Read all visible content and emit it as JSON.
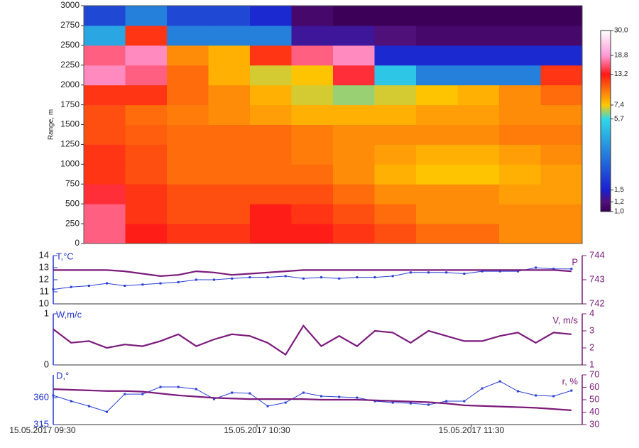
{
  "chart_data": [
    {
      "type": "heatmap",
      "ylabel": "Range, m",
      "ybins": [
        0,
        250,
        500,
        750,
        1000,
        1250,
        1500,
        1750,
        2000,
        2250,
        2500,
        2750,
        3000
      ],
      "ylim": [
        0,
        3000
      ],
      "yticks": [
        0,
        250,
        500,
        750,
        1000,
        1250,
        1500,
        1750,
        2000,
        2250,
        2500,
        2750,
        3000
      ],
      "values": [
        [
          16,
          13,
          12,
          12,
          13,
          13,
          12,
          11,
          10,
          10,
          9,
          9
        ],
        [
          16,
          12,
          11,
          11,
          13,
          12,
          11,
          10,
          9,
          9,
          9,
          9
        ],
        [
          14,
          12,
          11,
          11,
          11,
          11,
          10,
          9,
          9,
          9,
          8.5,
          8.5
        ],
        [
          12,
          11,
          10,
          10,
          10,
          10,
          9,
          8,
          7.5,
          7.5,
          8,
          8.5
        ],
        [
          12,
          11,
          10,
          10,
          10,
          9.5,
          9,
          8.5,
          8,
          8,
          8.5,
          9
        ],
        [
          11,
          10.5,
          10,
          10,
          10,
          9.5,
          9,
          9,
          9,
          9,
          9.5,
          9.5
        ],
        [
          11,
          10,
          9.5,
          9,
          8.5,
          8,
          8,
          8,
          8.5,
          8.5,
          9,
          9
        ],
        [
          12,
          12,
          10,
          9,
          8,
          7,
          6.5,
          7,
          7.5,
          8,
          9,
          10
        ],
        [
          18,
          16,
          10,
          8,
          7,
          7.5,
          14,
          5,
          3,
          3,
          3,
          12
        ],
        [
          16,
          18,
          9,
          8,
          12,
          16,
          18,
          1.6,
          1.6,
          1.6,
          1.6,
          1.6
        ],
        [
          4,
          12,
          3,
          3,
          3,
          1.3,
          1.3,
          1.2,
          1.1,
          1.1,
          1.1,
          1.1
        ],
        [
          2,
          3,
          2,
          2,
          1.6,
          1.1,
          1,
          1,
          1,
          1,
          1,
          1
        ]
      ],
      "clim": [
        1,
        30
      ],
      "clog": true,
      "cticks": [
        {
          "value": 30,
          "label": "30,0"
        },
        {
          "value": 18.8,
          "label": "18,8"
        },
        {
          "value": 13.2,
          "label": "13,2"
        },
        {
          "value": 7.4,
          "label": "7,4"
        },
        {
          "value": 5.7,
          "label": "5,7"
        },
        {
          "value": 1.5,
          "label": "1,5"
        },
        {
          "value": 1.2,
          "label": "1,2"
        },
        {
          "value": 1,
          "label": "1,0"
        }
      ],
      "ccolors": [
        "#ffffff",
        "#ff9ad8",
        "#ff1818",
        "#ffc800",
        "#30d8e8",
        "#1a20d0",
        "#50107a",
        "#3c0058"
      ]
    },
    {
      "type": "line",
      "ylabel": "T,°C",
      "y2label": "P",
      "x": [
        "2017-05-15 09:33",
        "2017-05-15 09:38",
        "2017-05-15 09:43",
        "2017-05-15 09:48",
        "2017-05-15 09:53",
        "2017-05-15 09:58",
        "2017-05-15 10:03",
        "2017-05-15 10:08",
        "2017-05-15 10:13",
        "2017-05-15 10:18",
        "2017-05-15 10:23",
        "2017-05-15 10:28",
        "2017-05-15 10:33",
        "2017-05-15 10:38",
        "2017-05-15 10:43",
        "2017-05-15 10:48",
        "2017-05-15 10:53",
        "2017-05-15 10:58",
        "2017-05-15 11:03",
        "2017-05-15 11:08",
        "2017-05-15 11:13",
        "2017-05-15 11:18",
        "2017-05-15 11:23",
        "2017-05-15 11:28",
        "2017-05-15 11:33",
        "2017-05-15 11:38",
        "2017-05-15 11:43",
        "2017-05-15 11:48",
        "2017-05-15 11:53",
        "2017-05-15 11:58"
      ],
      "xlim": [
        "2017-05-15 09:33",
        "2017-05-15 12:01"
      ],
      "ylim": [
        10,
        14
      ],
      "yticks": [
        10,
        11,
        12,
        13,
        14
      ],
      "y2lim": [
        742,
        744
      ],
      "y2ticks": [
        742,
        743,
        744
      ],
      "series": [
        {
          "color": "#2a3fd6",
          "marker": true,
          "values": [
            11.2,
            11.4,
            11.5,
            11.7,
            11.5,
            11.6,
            11.7,
            11.8,
            12.0,
            12.0,
            12.1,
            12.2,
            12.2,
            12.3,
            12.1,
            12.2,
            12.1,
            12.2,
            12.2,
            12.3,
            12.6,
            12.6,
            12.6,
            12.5,
            12.7,
            12.7,
            12.7,
            13.0,
            12.9,
            12.9
          ]
        },
        {
          "color": "#7b1a7b",
          "axis": "y2",
          "values": [
            743.4,
            743.4,
            743.4,
            743.4,
            743.35,
            743.25,
            743.15,
            743.2,
            743.35,
            743.3,
            743.2,
            743.25,
            743.3,
            743.35,
            743.4,
            743.4,
            743.4,
            743.4,
            743.4,
            743.4,
            743.4,
            743.4,
            743.4,
            743.4,
            743.4,
            743.4,
            743.4,
            743.4,
            743.4,
            743.35
          ]
        }
      ]
    },
    {
      "type": "line",
      "ylabel": "W,m/c",
      "y2label": "V, m/s",
      "x": [
        "2017-05-15 09:33",
        "2017-05-15 09:38",
        "2017-05-15 09:43",
        "2017-05-15 09:48",
        "2017-05-15 09:53",
        "2017-05-15 09:58",
        "2017-05-15 10:03",
        "2017-05-15 10:08",
        "2017-05-15 10:13",
        "2017-05-15 10:18",
        "2017-05-15 10:23",
        "2017-05-15 10:28",
        "2017-05-15 10:33",
        "2017-05-15 10:38",
        "2017-05-15 10:43",
        "2017-05-15 10:48",
        "2017-05-15 10:53",
        "2017-05-15 10:58",
        "2017-05-15 11:03",
        "2017-05-15 11:08",
        "2017-05-15 11:13",
        "2017-05-15 11:18",
        "2017-05-15 11:23",
        "2017-05-15 11:28",
        "2017-05-15 11:33",
        "2017-05-15 11:38",
        "2017-05-15 11:43",
        "2017-05-15 11:48",
        "2017-05-15 11:53",
        "2017-05-15 11:58"
      ],
      "xlim": [
        "2017-05-15 09:33",
        "2017-05-15 12:01"
      ],
      "ylim": [
        0,
        1
      ],
      "yticks": [
        0,
        1
      ],
      "y2lim": [
        1,
        4
      ],
      "y2ticks": [
        1,
        2,
        3,
        4
      ],
      "series": [
        {
          "color": "#7b1a7b",
          "axis": "y2",
          "values": [
            3.1,
            2.3,
            2.4,
            2.0,
            2.2,
            2.1,
            2.4,
            2.8,
            2.1,
            2.5,
            2.8,
            2.7,
            2.3,
            1.6,
            3.3,
            2.1,
            2.7,
            2.1,
            3.0,
            2.9,
            2.3,
            3.0,
            2.7,
            2.4,
            2.4,
            2.7,
            2.9,
            2.3,
            2.9,
            2.8
          ]
        }
      ]
    },
    {
      "type": "line",
      "ylabel": "D,°",
      "y2label": "r, %",
      "x": [
        "2017-05-15 09:33",
        "2017-05-15 09:38",
        "2017-05-15 09:43",
        "2017-05-15 09:48",
        "2017-05-15 09:53",
        "2017-05-15 09:58",
        "2017-05-15 10:03",
        "2017-05-15 10:08",
        "2017-05-15 10:13",
        "2017-05-15 10:18",
        "2017-05-15 10:23",
        "2017-05-15 10:28",
        "2017-05-15 10:33",
        "2017-05-15 10:38",
        "2017-05-15 10:43",
        "2017-05-15 10:48",
        "2017-05-15 10:53",
        "2017-05-15 10:58",
        "2017-05-15 11:03",
        "2017-05-15 11:08",
        "2017-05-15 11:13",
        "2017-05-15 11:18",
        "2017-05-15 11:23",
        "2017-05-15 11:28",
        "2017-05-15 11:33",
        "2017-05-15 11:38",
        "2017-05-15 11:43",
        "2017-05-15 11:48",
        "2017-05-15 11:53",
        "2017-05-15 11:58"
      ],
      "xlim": [
        "2017-05-15 09:33",
        "2017-05-15 12:01"
      ],
      "xticks": [
        {
          "value": "2017-05-15 09:30",
          "label": "15.05.2017 09:30"
        },
        {
          "value": "2017-05-15 10:30",
          "label": "15.05.2017 10:30"
        },
        {
          "value": "2017-05-15 11:30",
          "label": "15.05.2017 11:30"
        }
      ],
      "ylim": [
        315,
        398
      ],
      "yticks": [
        315,
        360
      ],
      "y2lim": [
        30,
        70
      ],
      "y2ticks": [
        30,
        40,
        50,
        60,
        70
      ],
      "series": [
        {
          "color": "#2a3fd6",
          "marker": true,
          "values": [
            363.6,
            354.1,
            345.8,
            336.3,
            365.9,
            365.9,
            377.8,
            377.8,
            374.2,
            357.6,
            368.3,
            367.1,
            345.8,
            351.7,
            368.3,
            362.4,
            361.2,
            360,
            354.1,
            351.7,
            350.5,
            348.2,
            354.1,
            354.1,
            375.4,
            387.2,
            370.7,
            363.6,
            362.4,
            371.8
          ]
        },
        {
          "color": "#7b1a7b",
          "axis": "y2",
          "values": [
            58.5,
            58,
            57.5,
            57,
            57,
            56.5,
            55,
            53.5,
            52.5,
            51.5,
            51,
            50.5,
            50.5,
            50.5,
            50.5,
            50,
            50,
            50,
            49.5,
            49,
            48.5,
            48,
            47,
            45.5,
            45,
            44.5,
            44,
            43.5,
            42.5,
            41.5
          ]
        }
      ]
    }
  ]
}
